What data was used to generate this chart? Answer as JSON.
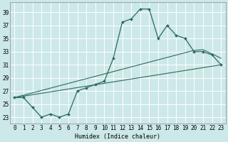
{
  "xlabel": "Humidex (Indice chaleur)",
  "bg_color": "#cde8e8",
  "grid_color": "#b0d8d8",
  "line_color": "#2a6b5a",
  "xlim": [
    -0.5,
    23.5
  ],
  "ylim": [
    22.0,
    40.5
  ],
  "xticks": [
    0,
    1,
    2,
    3,
    4,
    5,
    6,
    7,
    8,
    9,
    10,
    11,
    12,
    13,
    14,
    15,
    16,
    17,
    18,
    19,
    20,
    21,
    22,
    23
  ],
  "yticks": [
    23,
    25,
    27,
    29,
    31,
    33,
    35,
    37,
    39
  ],
  "main_x": [
    0,
    1,
    2,
    3,
    4,
    5,
    6,
    7,
    8,
    9,
    10,
    11,
    12,
    13,
    14,
    15,
    16,
    17,
    18,
    19,
    20,
    21,
    22,
    23
  ],
  "main_y": [
    26,
    26,
    24.5,
    23,
    23.5,
    23,
    23.5,
    27,
    27.5,
    28,
    28.5,
    32,
    37.5,
    38,
    39.5,
    39.5,
    35,
    37,
    35.5,
    35,
    33,
    33,
    32.5,
    31
  ],
  "line2_x": [
    0,
    23
  ],
  "line2_y": [
    26,
    31
  ],
  "line3_x": [
    0,
    20,
    21,
    23
  ],
  "line3_y": [
    26,
    33.2,
    33.3,
    32.0
  ],
  "xlabel_fontsize": 6,
  "tick_fontsize": 5.5,
  "marker_size": 2.0
}
